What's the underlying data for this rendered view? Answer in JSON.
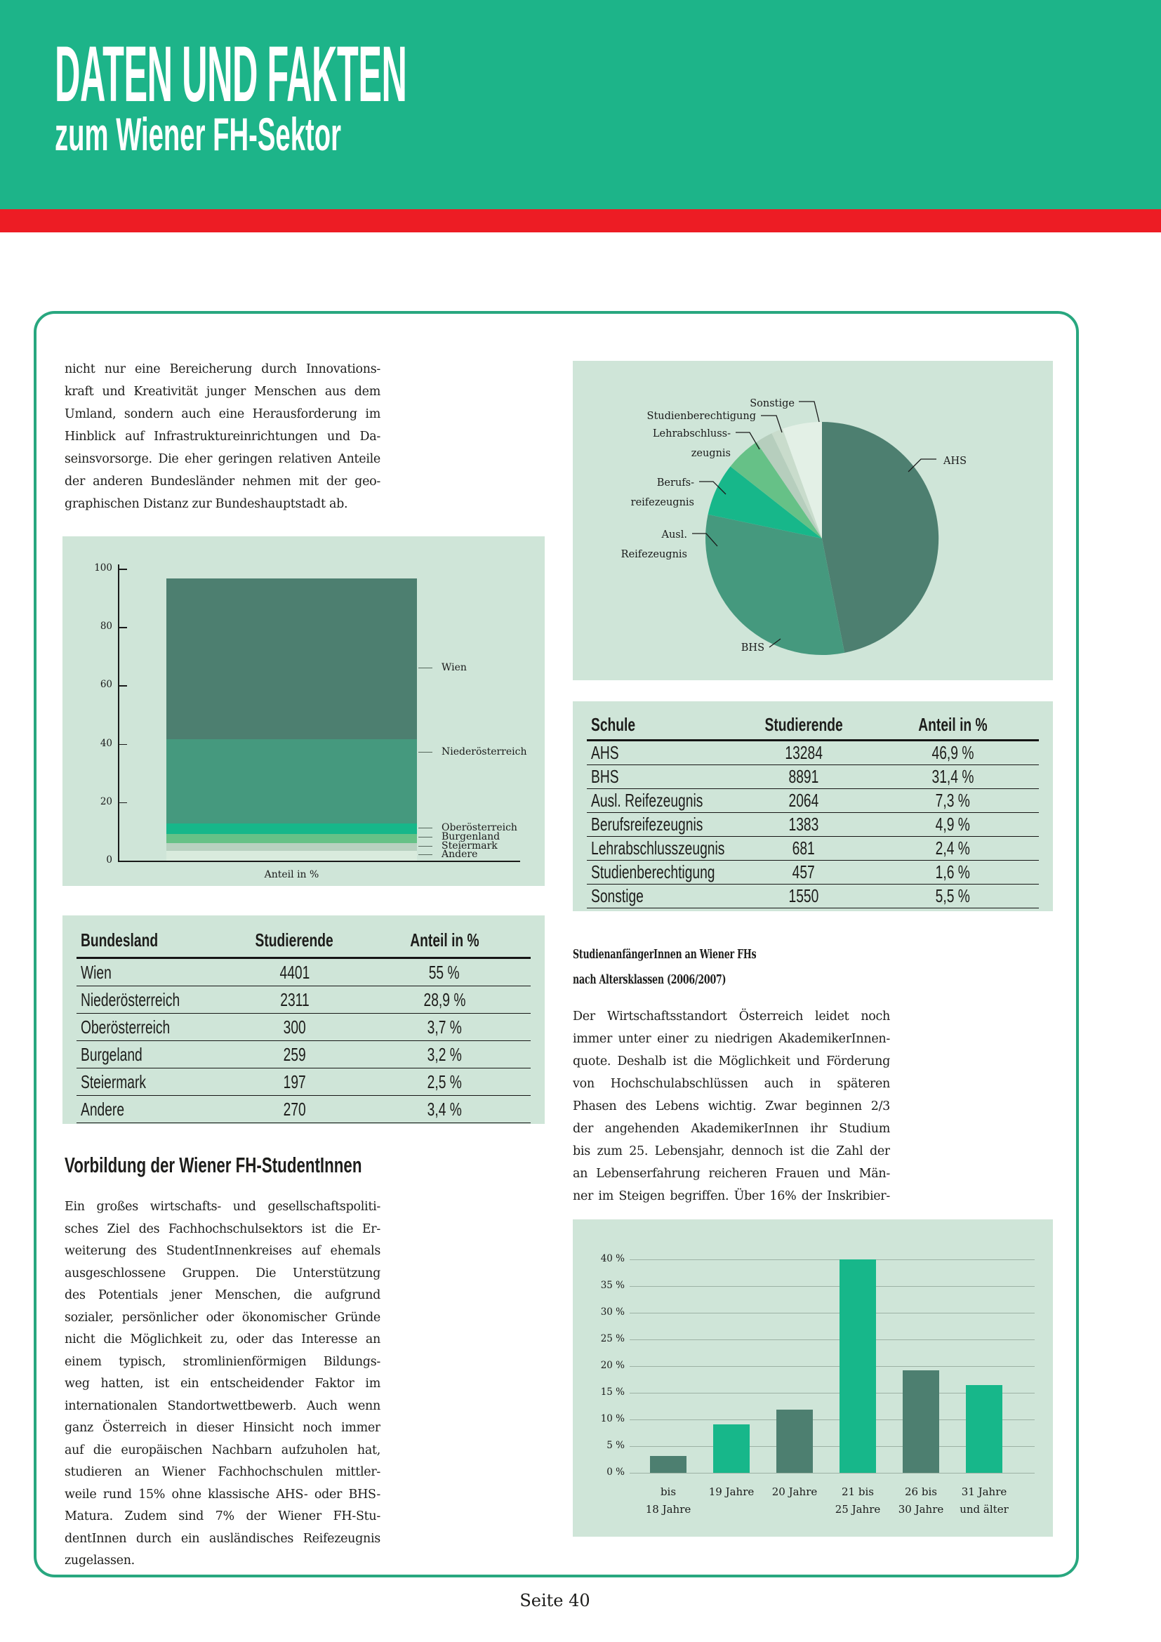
{
  "header": {
    "title": "DATEN UND FAKTEN",
    "subtitle": "zum Wiener FH-Sektor"
  },
  "footer": {
    "page_label": "Seite 40"
  },
  "colors": {
    "header_green": "#1db489",
    "accent_red": "#ed1c24",
    "box_border": "#28a77f",
    "panel_background": "#cfe5d8",
    "dark_green": "#4d7f70",
    "medium_green": "#45997e",
    "bright_teal": "#17b78a",
    "light_green": "#66c187",
    "pale_green": "#b8d1c0",
    "palest_green": "#e3f0e6",
    "text": "#1d1d1b"
  },
  "left_column": {
    "intro_lines": [
      "nicht nur eine Bereicherung durch Innovations-",
      "kraft und Kreativität junger Menschen aus dem",
      "Umland, sondern auch eine Herausforderung im",
      "Hinblick auf Infrastruktureinrichtungen und Da-",
      "seinsvorsorge. Die eher geringen relativen Anteile",
      "der anderen Bundesländer nehmen mit der geo-",
      "graphischen Distanz zur Bundeshauptstadt ab."
    ],
    "bundesland_table": {
      "headers": [
        "Bundesland",
        "Studierende",
        "Anteil in %"
      ],
      "rows": [
        [
          "Wien",
          "4401",
          "55 %"
        ],
        [
          "Niederösterreich",
          "2311",
          "28,9 %"
        ],
        [
          "Oberösterreich",
          "300",
          "3,7 %"
        ],
        [
          "Burgeland",
          "259",
          "3,2 %"
        ],
        [
          "Steiermark",
          "197",
          "2,5 %"
        ],
        [
          "Andere",
          "270",
          "3,4 %"
        ]
      ]
    },
    "section_heading": "Vorbildung der Wiener FH-StudentInnen",
    "body_lines": [
      "Ein großes wirtschafts- und gesellschaftspoliti-",
      "sches Ziel des Fachhochschulsektors ist die Er-",
      "weiterung des StudentInnenkreises auf ehemals",
      "ausgeschlossene Gruppen. Die Unterstützung",
      "des Potentials jener Menschen, die aufgrund",
      "sozialer, persönlicher oder ökonomischer Gründe",
      "nicht die Möglichkeit zu, oder das Interesse an",
      "einem typisch, stromlinienförmigen Bildungs-",
      "weg hatten, ist ein entscheidender Faktor im",
      "internationalen Standortwettbewerb. Auch wenn",
      "ganz Österreich in dieser Hinsicht noch immer",
      "auf die europäischen Nachbarn aufzuholen hat,",
      "studieren an Wiener Fachhochschulen mittler-",
      "weile rund 15% ohne klassische AHS- oder BHS-",
      "Matura. Zudem sind 7% der Wiener FH-Stu-",
      "dentInnen durch ein ausländisches Reifezeugnis",
      "zugelassen."
    ]
  },
  "right_column": {
    "schule_table": {
      "headers": [
        "Schule",
        "Studierende",
        "Anteil in %"
      ],
      "rows": [
        [
          "AHS",
          "13284",
          "46,9 %"
        ],
        [
          "BHS",
          "8891",
          "31,4 %"
        ],
        [
          "Ausl. Reifezeugnis",
          "2064",
          "7,3 %"
        ],
        [
          "Berufsreifezeugnis",
          "1383",
          "4,9 %"
        ],
        [
          "Lehrabschlusszeugnis",
          "681",
          "2,4 %"
        ],
        [
          "Studienberechtigung",
          "457",
          "1,6 %"
        ],
        [
          "Sonstige",
          "1550",
          "5,5 %"
        ]
      ]
    },
    "section_heading_lines": [
      "StudienanfängerInnen an Wiener FHs",
      "nach Altersklassen (2006/2007)"
    ],
    "body_lines": [
      "Der Wirtschaftsstandort Österreich leidet noch",
      "immer unter einer zu niedrigen AkademikerInnen-",
      "quote. Deshalb ist die Möglichkeit und Förderung",
      "von Hochschulabschlüssen auch in späteren",
      "Phasen des Lebens wichtig. Zwar beginnen 2/3",
      "der angehenden AkademikerInnen ihr Studium",
      "bis zum 25. Lebensjahr, dennoch ist die Zahl der",
      "an Lebenserfahrung reicheren Frauen und Män-",
      "ner im Steigen begriffen. Über 16% der Inskribier-"
    ]
  },
  "chart_data": [
    {
      "id": "bundesland_stack",
      "type": "bar",
      "stacked": true,
      "xlabel": "Anteil in %",
      "ylabel": "",
      "ylim": [
        0,
        100
      ],
      "yticks": [
        0,
        20,
        40,
        60,
        80,
        100
      ],
      "series": [
        {
          "name": "Wien",
          "value": 55,
          "color": "#4d7f70"
        },
        {
          "name": "Niederösterreich",
          "value": 28.9,
          "color": "#45997e"
        },
        {
          "name": "Oberösterreich",
          "value": 3.7,
          "color": "#17b78a"
        },
        {
          "name": "Burgenland",
          "value": 3.2,
          "color": "#66c187"
        },
        {
          "name": "Steiermark",
          "value": 2.5,
          "color": "#b8d1c0"
        },
        {
          "name": "Andere",
          "value": 3.4,
          "color": "#d9ebdd"
        }
      ]
    },
    {
      "id": "vorbildung_pie",
      "type": "pie",
      "slices": [
        {
          "label_lines": [
            "AHS"
          ],
          "value": 46.9,
          "color": "#4d7f70"
        },
        {
          "label_lines": [
            "BHS"
          ],
          "value": 31.4,
          "color": "#45997e"
        },
        {
          "label_lines": [
            "Ausl.",
            "Reifezeugnis"
          ],
          "value": 7.3,
          "color": "#17b78a"
        },
        {
          "label_lines": [
            "Berufs-",
            "reifezeugnis"
          ],
          "value": 4.9,
          "color": "#66c187"
        },
        {
          "label_lines": [
            "Lehrabschluss-",
            "zeugnis"
          ],
          "value": 2.4,
          "color": "#b6cebd"
        },
        {
          "label_lines": [
            "Studienberechtigung"
          ],
          "value": 1.6,
          "color": "#c9dccc"
        },
        {
          "label_lines": [
            "Sonstige"
          ],
          "value": 5.5,
          "color": "#e3f0e6"
        }
      ]
    },
    {
      "id": "alter_bar",
      "type": "bar",
      "stacked": false,
      "categories_lines": [
        [
          "bis",
          "18 Jahre"
        ],
        [
          "19 Jahre"
        ],
        [
          "20 Jahre"
        ],
        [
          "21 bis",
          "25 Jahre"
        ],
        [
          "26 bis",
          "30 Jahre"
        ],
        [
          "31 Jahre",
          "und älter"
        ]
      ],
      "values": [
        3.2,
        9.1,
        11.8,
        40,
        19.2,
        16.4
      ],
      "colors": [
        "#4d7f70",
        "#17b78a",
        "#4d7f70",
        "#17b78a",
        "#4d7f70",
        "#17b78a"
      ],
      "ylim": [
        0,
        40
      ],
      "ytick_labels": [
        "0 %",
        "5 %",
        "10 %",
        "15 %",
        "20 %",
        "25 %",
        "30 %",
        "35 %",
        "40 %"
      ],
      "yticks": [
        0,
        5,
        10,
        15,
        20,
        25,
        30,
        35,
        40
      ],
      "grid": true
    }
  ]
}
